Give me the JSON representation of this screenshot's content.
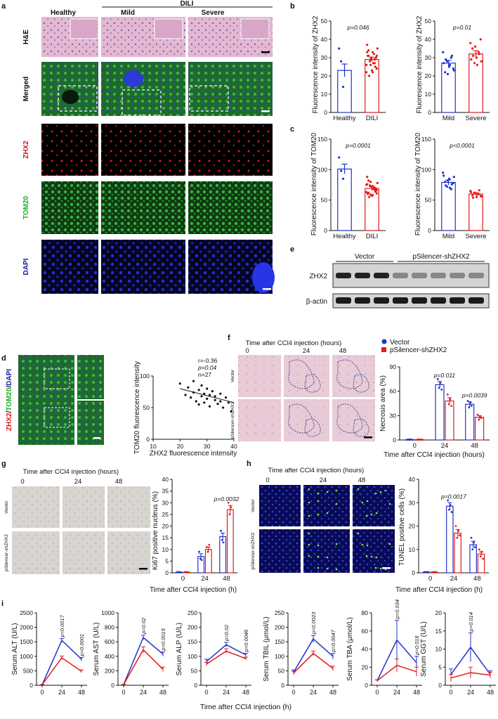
{
  "panels": {
    "a": {
      "letter": "a",
      "col_headers": [
        "Healthy",
        "Mild",
        "Severe"
      ],
      "group_label": "DILI",
      "row_labels": [
        "H&E",
        "Merged",
        "ZHX2",
        "TOM20",
        "DAPI"
      ],
      "row_colors": [
        "#111111",
        "#111111",
        "#e0141e",
        "#1faa2a",
        "#1a1aa8"
      ]
    },
    "b": {
      "letter": "b",
      "ylabel": "Fluorescence intensity of ZHX2",
      "subplots": [
        {
          "categories": [
            "Healthy",
            "DILI"
          ],
          "values": [
            23,
            29
          ],
          "errors": [
            3.5,
            1.2
          ],
          "p": "p=0.046",
          "ylim": [
            0,
            50
          ],
          "yticks": [
            0,
            10,
            20,
            30,
            40,
            50
          ]
        },
        {
          "categories": [
            "Mild",
            "Severe"
          ],
          "values": [
            27,
            32
          ],
          "errors": [
            1.5,
            1.8
          ],
          "p": "p=0.01",
          "ylim": [
            0,
            50
          ],
          "yticks": [
            0,
            10,
            20,
            30,
            40,
            50
          ]
        }
      ]
    },
    "c": {
      "letter": "c",
      "ylabel": "Fluorescence intensity of TOM20",
      "subplots": [
        {
          "categories": [
            "Healthy",
            "DILI"
          ],
          "values": [
            101,
            69
          ],
          "errors": [
            8,
            3
          ],
          "p": "p=0.0001",
          "ylim": [
            0,
            150
          ],
          "yticks": [
            0,
            50,
            100,
            150
          ]
        },
        {
          "categories": [
            "Mild",
            "Severe"
          ],
          "values": [
            79,
            60
          ],
          "errors": [
            4,
            2
          ],
          "p": "p<0.0001",
          "ylim": [
            0,
            150
          ],
          "yticks": [
            0,
            50,
            100,
            150
          ]
        }
      ]
    },
    "d": {
      "letter": "d",
      "stain_label": [
        "ZHX2",
        "/",
        "TOM20",
        "/",
        "DAPI"
      ],
      "stain_colors": [
        "#e0141e",
        "#111111",
        "#1faa2a",
        "#111111",
        "#1a1aa8"
      ],
      "stats": [
        "r=-0.36",
        "p=0.04",
        "n=27"
      ]
    },
    "e": {
      "letter": "e",
      "groups": [
        "Vector",
        "pSilencer-shZHX2"
      ],
      "rows": [
        "ZHX2",
        "β-actin"
      ]
    },
    "f": {
      "letter": "f",
      "time_title": "Time after CCl4 injection (hours)",
      "times": [
        "0",
        "24",
        "48"
      ],
      "row_labels": [
        "Vector",
        "pSilencer-shZHX2"
      ],
      "legend": [
        "Vector",
        "pSilencer-shZHX2"
      ]
    },
    "g": {
      "letter": "g",
      "time_title": "Time after CCl4 injection (hours)",
      "times": [
        "0",
        "24",
        "48"
      ],
      "row_labels": [
        "Vector",
        "pSilencer-shZHX2"
      ]
    },
    "h": {
      "letter": "h",
      "time_title": "Time after CCl4 injection (hours)",
      "times": [
        "0",
        "24",
        "48"
      ],
      "row_labels": [
        "Vector",
        "pSilencer-shZHX2"
      ]
    },
    "i": {
      "letter": "i",
      "xlabel": "Time after CCl4 injection (h)"
    }
  },
  "colors": {
    "vector": "#2233cc",
    "shzhx2": "#e21b1b"
  },
  "chart_data": [
    {
      "id": "b1",
      "type": "bar",
      "ylabel": "Fluorescence intensity of ZHX2",
      "categories": [
        "Healthy",
        "DILI"
      ],
      "values": [
        23,
        29
      ],
      "errors": [
        3.5,
        1.2
      ],
      "ylim": [
        0,
        50
      ],
      "yticks": [
        0,
        10,
        20,
        30,
        40,
        50
      ],
      "annotation": "p=0.046",
      "points": [
        [
          35,
          28,
          14
        ],
        [
          22,
          31,
          26,
          33,
          29,
          24,
          37,
          20,
          30,
          27,
          25,
          35,
          31,
          28,
          23,
          32,
          30,
          26,
          34,
          29,
          22,
          27,
          31,
          33
        ]
      ]
    },
    {
      "id": "b2",
      "type": "bar",
      "ylabel": "Fluorescence intensity of ZHX2",
      "categories": [
        "Mild",
        "Severe"
      ],
      "values": [
        27,
        32
      ],
      "errors": [
        1.5,
        1.8
      ],
      "ylim": [
        0,
        50
      ],
      "yticks": [
        0,
        10,
        20,
        30,
        40,
        50
      ],
      "annotation": "p=0.01",
      "points": [
        [
          33,
          22,
          28,
          25,
          30,
          24,
          27,
          29,
          21,
          26,
          31,
          23
        ],
        [
          38,
          35,
          27,
          30,
          33,
          40,
          29,
          31,
          36,
          26,
          32,
          28
        ]
      ]
    },
    {
      "id": "c1",
      "type": "bar",
      "ylabel": "Fluorescence intensity of TOM20",
      "categories": [
        "Healthy",
        "DILI"
      ],
      "values": [
        101,
        69
      ],
      "errors": [
        8,
        3
      ],
      "ylim": [
        0,
        150
      ],
      "yticks": [
        0,
        50,
        100,
        150
      ],
      "annotation": "p=0.0001",
      "points": [
        [
          120,
          98,
          85
        ],
        [
          75,
          62,
          80,
          58,
          70,
          66,
          88,
          55,
          72,
          68,
          64,
          78,
          60,
          74,
          57,
          71,
          69,
          63,
          82,
          59,
          73,
          67,
          61,
          76
        ]
      ]
    },
    {
      "id": "c2",
      "type": "bar",
      "ylabel": "Fluorescence intensity of TOM20",
      "categories": [
        "Mild",
        "Severe"
      ],
      "values": [
        79,
        60
      ],
      "errors": [
        4,
        2
      ],
      "ylim": [
        0,
        150
      ],
      "yticks": [
        0,
        50,
        100,
        150
      ],
      "annotation": "p<0.0001",
      "points": [
        [
          95,
          80,
          72,
          85,
          68,
          78,
          90,
          74,
          82,
          70,
          76,
          88
        ],
        [
          65,
          58,
          62,
          55,
          60,
          57,
          63,
          54,
          61,
          59,
          66,
          56
        ]
      ]
    },
    {
      "id": "d",
      "type": "scatter",
      "xlabel": "ZHX2 fluorescence intensity",
      "ylabel": "TOM20 fluorescence intensity",
      "xlim": [
        10,
        40
      ],
      "ylim": [
        0,
        100
      ],
      "xticks": [
        10,
        20,
        30,
        40
      ],
      "yticks": [
        0,
        50,
        100
      ],
      "x": [
        20,
        22,
        23,
        24,
        25,
        25,
        26,
        27,
        27,
        28,
        28,
        29,
        29,
        30,
        30,
        31,
        31,
        32,
        33,
        33,
        34,
        35,
        35,
        36,
        37,
        38,
        39
      ],
      "y": [
        88,
        70,
        82,
        66,
        74,
        92,
        60,
        78,
        55,
        85,
        68,
        72,
        58,
        80,
        64,
        70,
        52,
        76,
        62,
        68,
        56,
        72,
        60,
        50,
        66,
        58,
        44
      ],
      "fit": [
        [
          20,
          80
        ],
        [
          40,
          58
        ]
      ]
    },
    {
      "id": "f",
      "type": "bar",
      "ylabel": "Necrosis area (%)",
      "xlabel": "Time after CCl4 injection (hours)",
      "categories": [
        "0",
        "24",
        "48"
      ],
      "ylim": [
        0,
        90
      ],
      "yticks": [
        0,
        30,
        60,
        90
      ],
      "series": [
        {
          "name": "Vector",
          "values": [
            0.5,
            68,
            44
          ],
          "errors": [
            0.2,
            4,
            3
          ],
          "points": [
            [
              0.5,
              0.5,
              0.5,
              0.5
            ],
            [
              75,
              64,
              70,
              62
            ],
            [
              48,
              40,
              46,
              42
            ]
          ]
        },
        {
          "name": "pSilencer-shZHX2",
          "values": [
            0.5,
            48,
            28
          ],
          "errors": [
            0.2,
            4,
            2
          ],
          "points": [
            [
              0.5,
              0.5,
              0.5,
              0.5
            ],
            [
              56,
              44,
              50,
              42
            ],
            [
              31,
              25,
              29,
              27
            ]
          ]
        }
      ],
      "annotations": [
        {
          "category": "24",
          "text": "p=0.011"
        },
        {
          "category": "48",
          "text": "p=0.0039"
        }
      ]
    },
    {
      "id": "g",
      "type": "bar",
      "ylabel": "Ki67 positive nucleus (%)",
      "xlabel": "Time after CCl4 injection (h)",
      "categories": [
        "0",
        "24",
        "48"
      ],
      "ylim": [
        0,
        40
      ],
      "yticks": [
        0,
        5,
        10,
        15,
        20,
        25,
        30,
        35,
        40
      ],
      "series": [
        {
          "name": "Vector",
          "values": [
            0.3,
            7,
            15.5
          ],
          "errors": [
            0.1,
            1.2,
            1.5
          ],
          "points": [
            [
              0.3,
              0.3,
              0.3
            ],
            [
              9,
              6,
              5.5
            ],
            [
              18,
              14,
              13
            ]
          ]
        },
        {
          "name": "pSilencer-shZHX2",
          "values": [
            0.3,
            10,
            27
          ],
          "errors": [
            0.1,
            1,
            1.8
          ],
          "points": [
            [
              0.3,
              0.3,
              0.3
            ],
            [
              11,
              9,
              12
            ],
            [
              30,
              25,
              28
            ]
          ]
        }
      ],
      "annotations": [
        {
          "category": "48",
          "text": "p=0.0032"
        }
      ]
    },
    {
      "id": "h",
      "type": "bar",
      "ylabel": "TUNEL positive cells (%)",
      "xlabel": "Time after CCl4 injection (h)",
      "categories": [
        "0",
        "24",
        "48"
      ],
      "ylim": [
        0,
        40
      ],
      "yticks": [
        0,
        10,
        20,
        30,
        40
      ],
      "series": [
        {
          "name": "Vector",
          "values": [
            0.3,
            28.5,
            12
          ],
          "errors": [
            0.1,
            1.5,
            1.5
          ],
          "points": [
            [
              0.3,
              0.3,
              0.3,
              0.3
            ],
            [
              31,
              27,
              29,
              26
            ],
            [
              15,
              10,
              13,
              11
            ]
          ]
        },
        {
          "name": "pSilencer-shZHX2",
          "values": [
            0.3,
            17,
            8
          ],
          "errors": [
            0.1,
            1.5,
            1
          ],
          "points": [
            [
              0.3,
              0.3,
              0.3,
              0.3
            ],
            [
              20,
              15,
              18,
              16
            ],
            [
              10,
              7,
              9,
              6
            ]
          ]
        }
      ],
      "annotations": [
        {
          "category": "24",
          "text": "p=0.0017"
        }
      ]
    },
    {
      "id": "i1",
      "type": "line",
      "ylabel": "Serum ALT (U/L)",
      "x": [
        0,
        24,
        48
      ],
      "xticks": [
        0,
        24,
        48
      ],
      "ylim": [
        0,
        2500
      ],
      "yticks": [
        0,
        500,
        1000,
        1500,
        2000,
        2500
      ],
      "series": [
        {
          "name": "Vector",
          "values": [
            20,
            1550,
            900
          ],
          "errors": [
            5,
            60,
            60
          ]
        },
        {
          "name": "pSilencer-shZHX2",
          "values": [
            20,
            950,
            480
          ],
          "errors": [
            5,
            60,
            50
          ]
        }
      ],
      "annotations": [
        {
          "x": 24,
          "text": "p=0.0017"
        },
        {
          "x": 48,
          "text": "p=0.0001"
        }
      ]
    },
    {
      "id": "i2",
      "type": "line",
      "ylabel": "Serum AST (U/L)",
      "x": [
        0,
        24,
        48
      ],
      "xticks": [
        0,
        24,
        48
      ],
      "ylim": [
        0,
        1000
      ],
      "yticks": [
        0,
        200,
        400,
        600,
        800,
        1000
      ],
      "series": [
        {
          "name": "Vector",
          "values": [
            10,
            660,
            430
          ],
          "errors": [
            3,
            30,
            30
          ]
        },
        {
          "name": "pSilencer-shZHX2",
          "values": [
            10,
            490,
            220
          ],
          "errors": [
            3,
            40,
            30
          ]
        }
      ],
      "annotations": [
        {
          "x": 24,
          "text": "p=0.02"
        },
        {
          "x": 48,
          "text": "p=0.0015"
        }
      ]
    },
    {
      "id": "i3",
      "type": "line",
      "ylabel": "Serum ALP (U/L)",
      "x": [
        0,
        24,
        48
      ],
      "xticks": [
        0,
        24,
        48
      ],
      "ylim": [
        0,
        250
      ],
      "yticks": [
        0,
        50,
        100,
        150,
        200,
        250
      ],
      "series": [
        {
          "name": "Vector",
          "values": [
            82,
            140,
            105
          ],
          "errors": [
            8,
            8,
            6
          ]
        },
        {
          "name": "pSilencer-shZHX2",
          "values": [
            73,
            118,
            92
          ],
          "errors": [
            6,
            8,
            5
          ]
        }
      ],
      "annotations": [
        {
          "x": 24,
          "text": "p=0.02"
        },
        {
          "x": 48,
          "text": "p=0.0046"
        }
      ]
    },
    {
      "id": "i4",
      "type": "line",
      "ylabel": "Serum TBIL (μmol/L)",
      "x": [
        0,
        24,
        48
      ],
      "xticks": [
        0,
        24,
        48
      ],
      "ylim": [
        0,
        250
      ],
      "yticks": [
        0,
        50,
        100,
        150,
        200,
        250
      ],
      "series": [
        {
          "name": "Vector",
          "values": [
            45,
            160,
            100
          ],
          "errors": [
            8,
            12,
            10
          ]
        },
        {
          "name": "pSilencer-shZHX2",
          "values": [
            42,
            110,
            58
          ],
          "errors": [
            6,
            8,
            8
          ]
        }
      ],
      "annotations": [
        {
          "x": 24,
          "text": "p=0.0023"
        },
        {
          "x": 48,
          "text": "p=0.0047"
        }
      ]
    },
    {
      "id": "i5",
      "type": "line",
      "ylabel": "Serum TBA (μmol/L)",
      "x": [
        0,
        24,
        48
      ],
      "xticks": [
        0,
        24,
        48
      ],
      "ylim": [
        0,
        80
      ],
      "yticks": [
        0,
        20,
        40,
        60,
        80
      ],
      "series": [
        {
          "name": "Vector",
          "values": [
            5,
            50,
            25
          ],
          "errors": [
            1,
            22,
            7
          ]
        },
        {
          "name": "pSilencer-shZHX2",
          "values": [
            5,
            22,
            15
          ],
          "errors": [
            1,
            7,
            5
          ]
        }
      ],
      "annotations": [
        {
          "x": 24,
          "text": "p=0.034"
        },
        {
          "x": 48,
          "text": "p=0.018"
        }
      ]
    },
    {
      "id": "i6",
      "type": "line",
      "ylabel": "Serum GGT (U/L)",
      "x": [
        0,
        24,
        48
      ],
      "xticks": [
        0,
        24,
        48
      ],
      "ylim": [
        0,
        20
      ],
      "yticks": [
        0,
        5,
        10,
        15,
        20
      ],
      "series": [
        {
          "name": "Vector",
          "values": [
            3,
            10.5,
            3
          ],
          "errors": [
            1.5,
            4,
            1
          ]
        },
        {
          "name": "pSilencer-shZHX2",
          "values": [
            2,
            3.5,
            2.8
          ],
          "errors": [
            1,
            1.5,
            0.8
          ]
        }
      ],
      "annotations": [
        {
          "x": 24,
          "text": "p=0.014"
        }
      ]
    }
  ]
}
